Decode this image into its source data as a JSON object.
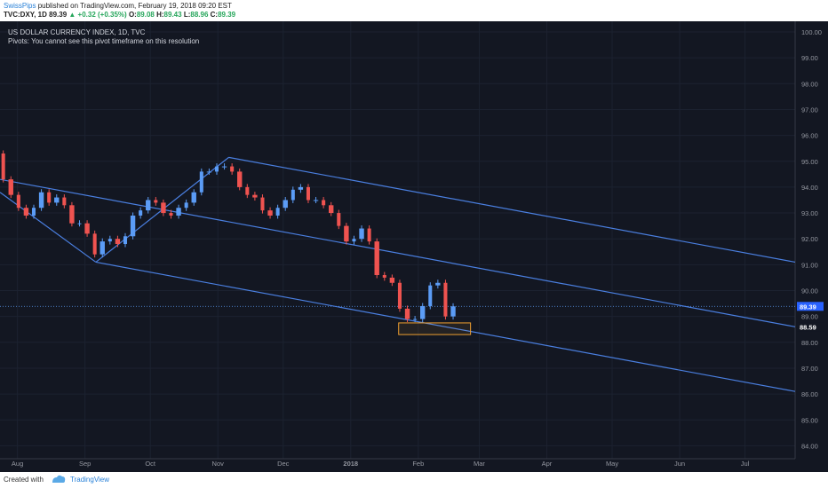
{
  "header": {
    "author": "SwissPips",
    "published": "published on TradingView.com, February 19, 2018 09:20 EST",
    "symbol": "TVC:DXY, 1D",
    "last": "89.39",
    "change": "▲ +0.32 (+0.35%)",
    "o_label": "O:",
    "o": "89.08",
    "h_label": "H:",
    "h": "89.43",
    "l_label": "L:",
    "l": "88.96",
    "c_label": "C:",
    "c": "89.39"
  },
  "legend": {
    "title": "US DOLLAR CURRENCY INDEX, 1D, TVC",
    "pivots": "Pivots: You cannot see this pivot timeframe on this resolution"
  },
  "footer": {
    "created": "Created with",
    "brand": "TradingView"
  },
  "colors": {
    "background": "#131722",
    "up": "#5b9cf6",
    "down": "#ef5350",
    "trendline": "#4a7fe0",
    "box": "#f0a030",
    "price_line": "#5b9cf6"
  },
  "chart_data": {
    "type": "candlestick",
    "title": "US DOLLAR CURRENCY INDEX, 1D, TVC",
    "ylim": [
      83.6,
      100.4
    ],
    "y_ticks": [
      "100.00",
      "99.00",
      "98.00",
      "97.00",
      "96.00",
      "95.00",
      "94.00",
      "93.00",
      "92.00",
      "91.00",
      "90.00",
      "89.00",
      "88.00",
      "87.00",
      "86.00",
      "85.00",
      "84.00"
    ],
    "x_axis_range": [
      "2017-07-24",
      "2018-07-24"
    ],
    "x_ticks": [
      {
        "label": "Aug",
        "date": "2017-08-01"
      },
      {
        "label": "Sep",
        "date": "2017-09-01"
      },
      {
        "label": "Oct",
        "date": "2017-10-01"
      },
      {
        "label": "Nov",
        "date": "2017-11-01"
      },
      {
        "label": "Dec",
        "date": "2017-12-01"
      },
      {
        "label": "2018",
        "date": "2018-01-01"
      },
      {
        "label": "Feb",
        "date": "2018-02-01"
      },
      {
        "label": "Mar",
        "date": "2018-03-01"
      },
      {
        "label": "Apr",
        "date": "2018-04-01"
      },
      {
        "label": "May",
        "date": "2018-05-01"
      },
      {
        "label": "Jun",
        "date": "2018-06-01"
      },
      {
        "label": "Jul",
        "date": "2018-07-01"
      }
    ],
    "price_labels": [
      {
        "value": 89.39,
        "text": "89.39",
        "kind": "last"
      },
      {
        "value": 88.59,
        "text": "88.59",
        "kind": "level"
      }
    ],
    "closes": [
      {
        "date": "2017-07-24",
        "close": 95.3
      },
      {
        "date": "2017-07-27",
        "close": 94.3
      },
      {
        "date": "2017-07-31",
        "close": 93.7
      },
      {
        "date": "2017-08-03",
        "close": 93.2
      },
      {
        "date": "2017-08-07",
        "close": 92.9
      },
      {
        "date": "2017-08-10",
        "close": 93.2
      },
      {
        "date": "2017-08-14",
        "close": 93.8
      },
      {
        "date": "2017-08-17",
        "close": 93.4
      },
      {
        "date": "2017-08-21",
        "close": 93.6
      },
      {
        "date": "2017-08-24",
        "close": 93.3
      },
      {
        "date": "2017-08-28",
        "close": 92.6
      },
      {
        "date": "2017-08-31",
        "close": 92.6
      },
      {
        "date": "2017-09-04",
        "close": 92.2
      },
      {
        "date": "2017-09-07",
        "close": 91.4
      },
      {
        "date": "2017-09-11",
        "close": 91.9
      },
      {
        "date": "2017-09-14",
        "close": 92.0
      },
      {
        "date": "2017-09-18",
        "close": 91.8
      },
      {
        "date": "2017-09-21",
        "close": 92.1
      },
      {
        "date": "2017-09-25",
        "close": 92.9
      },
      {
        "date": "2017-09-28",
        "close": 93.1
      },
      {
        "date": "2017-10-02",
        "close": 93.5
      },
      {
        "date": "2017-10-05",
        "close": 93.4
      },
      {
        "date": "2017-10-09",
        "close": 93.0
      },
      {
        "date": "2017-10-12",
        "close": 92.9
      },
      {
        "date": "2017-10-16",
        "close": 93.2
      },
      {
        "date": "2017-10-19",
        "close": 93.4
      },
      {
        "date": "2017-10-23",
        "close": 93.8
      },
      {
        "date": "2017-10-26",
        "close": 94.6
      },
      {
        "date": "2017-10-30",
        "close": 94.6
      },
      {
        "date": "2017-11-02",
        "close": 94.8
      },
      {
        "date": "2017-11-06",
        "close": 94.8
      },
      {
        "date": "2017-11-09",
        "close": 94.6
      },
      {
        "date": "2017-11-13",
        "close": 94.0
      },
      {
        "date": "2017-11-16",
        "close": 93.7
      },
      {
        "date": "2017-11-20",
        "close": 93.6
      },
      {
        "date": "2017-11-23",
        "close": 93.1
      },
      {
        "date": "2017-11-27",
        "close": 92.9
      },
      {
        "date": "2017-11-30",
        "close": 93.2
      },
      {
        "date": "2017-12-04",
        "close": 93.5
      },
      {
        "date": "2017-12-07",
        "close": 93.9
      },
      {
        "date": "2017-12-11",
        "close": 94.0
      },
      {
        "date": "2017-12-14",
        "close": 93.5
      },
      {
        "date": "2017-12-18",
        "close": 93.5
      },
      {
        "date": "2017-12-21",
        "close": 93.3
      },
      {
        "date": "2017-12-25",
        "close": 93.0
      },
      {
        "date": "2017-12-28",
        "close": 92.5
      },
      {
        "date": "2018-01-01",
        "close": 91.9
      },
      {
        "date": "2018-01-04",
        "close": 92.0
      },
      {
        "date": "2018-01-08",
        "close": 92.4
      },
      {
        "date": "2018-01-11",
        "close": 91.9
      },
      {
        "date": "2018-01-15",
        "close": 90.6
      },
      {
        "date": "2018-01-18",
        "close": 90.5
      },
      {
        "date": "2018-01-22",
        "close": 90.3
      },
      {
        "date": "2018-01-25",
        "close": 89.3
      },
      {
        "date": "2018-01-29",
        "close": 88.9
      },
      {
        "date": "2018-02-01",
        "close": 88.9
      },
      {
        "date": "2018-02-05",
        "close": 89.4
      },
      {
        "date": "2018-02-08",
        "close": 90.2
      },
      {
        "date": "2018-02-12",
        "close": 90.3
      },
      {
        "date": "2018-02-15",
        "close": 89.0
      },
      {
        "date": "2018-02-19",
        "close": 89.39
      }
    ],
    "annotations": {
      "trendlines": [
        {
          "name": "channel-upper-line",
          "from": {
            "date": "2017-11-06",
            "price": 95.15
          },
          "to": {
            "date": "2018-07-24",
            "price": 91.1
          }
        },
        {
          "name": "channel-middle-line",
          "from": {
            "date": "2017-07-24",
            "price": 94.3
          },
          "to": {
            "date": "2018-07-24",
            "price": 88.6
          }
        },
        {
          "name": "channel-lower-line",
          "from": {
            "date": "2017-09-06",
            "price": 91.1
          },
          "to": {
            "date": "2018-07-24",
            "price": 86.1
          }
        },
        {
          "name": "zigzag-segment-1",
          "from": {
            "date": "2017-07-24",
            "price": 93.8
          },
          "to": {
            "date": "2017-09-06",
            "price": 91.1
          }
        },
        {
          "name": "zigzag-segment-2",
          "from": {
            "date": "2017-09-06",
            "price": 91.1
          },
          "to": {
            "date": "2017-11-06",
            "price": 95.15
          }
        }
      ],
      "support_box": {
        "from": "2018-01-23",
        "to": "2018-02-25",
        "high": 88.75,
        "low": 88.3
      }
    }
  }
}
